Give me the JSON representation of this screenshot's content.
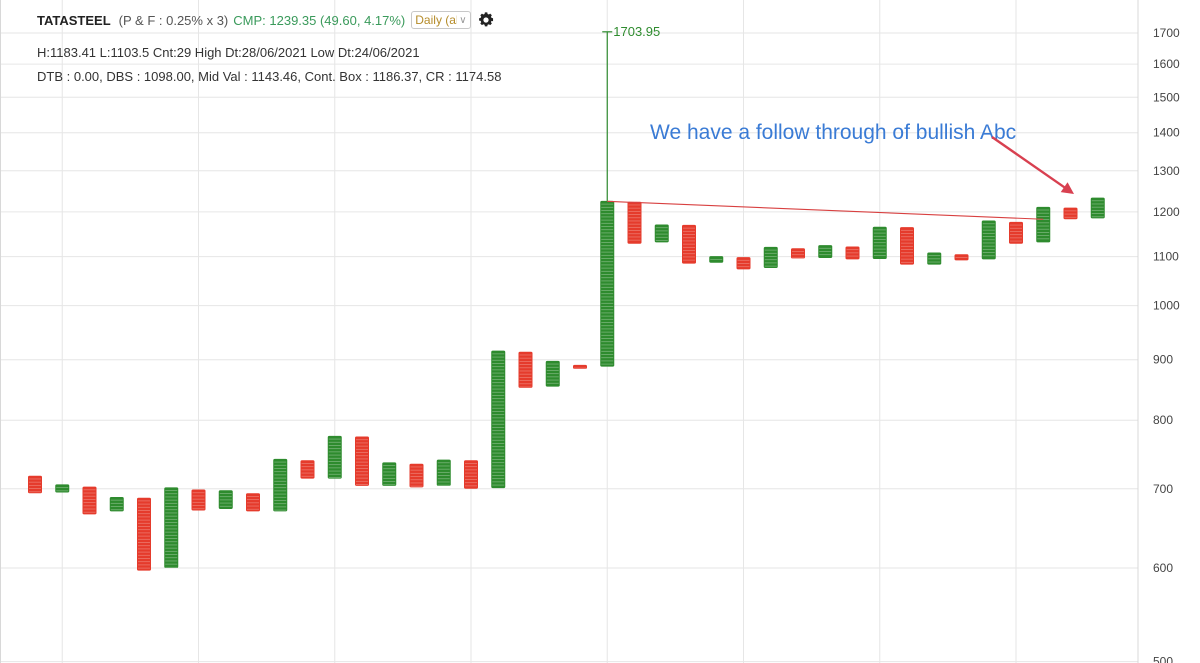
{
  "header": {
    "symbol": "TATASTEEL",
    "params": "(P & F : 0.25% x 3)",
    "cmp": "CMP: 1239.35 (49.60, 4.17%)",
    "timeframe": "Daily (al"
  },
  "info": {
    "line1": "H:1183.41 L:1103.5 Cnt:29 High Dt:28/06/2021 Low Dt:24/06/2021",
    "line2": "DTB : 0.00, DBS : 1098.00, Mid Val : 1143.46, Cont. Box : 1186.37, CR : 1174.58"
  },
  "annotation": {
    "text": "We have a follow through of bullish Abc",
    "color": "#3a7bd5"
  },
  "colors": {
    "up": "#2e8b2e",
    "down": "#e53b2c",
    "trendline": "#d84040",
    "arrow": "#d84050",
    "grid": "#e6e6e6"
  },
  "chart_data": {
    "type": "point-and-figure",
    "scale": "log",
    "ylim": [
      500,
      1760
    ],
    "y_ticks": [
      500,
      600,
      700,
      800,
      900,
      1000,
      1100,
      1200,
      1300,
      1400,
      1500,
      1600,
      1700
    ],
    "columns": [
      {
        "type": "O",
        "high": 718,
        "low": 694
      },
      {
        "type": "X",
        "high": 706,
        "low": 695
      },
      {
        "type": "O",
        "high": 703,
        "low": 666
      },
      {
        "type": "X",
        "high": 689,
        "low": 670
      },
      {
        "type": "O",
        "high": 688,
        "low": 597
      },
      {
        "type": "X",
        "high": 702,
        "low": 600
      },
      {
        "type": "O",
        "high": 699,
        "low": 671
      },
      {
        "type": "X",
        "high": 698,
        "low": 673
      },
      {
        "type": "O",
        "high": 694,
        "low": 670
      },
      {
        "type": "X",
        "high": 742,
        "low": 670
      },
      {
        "type": "O",
        "high": 740,
        "low": 714
      },
      {
        "type": "X",
        "high": 776,
        "low": 714
      },
      {
        "type": "O",
        "high": 775,
        "low": 704
      },
      {
        "type": "X",
        "high": 737,
        "low": 704
      },
      {
        "type": "O",
        "high": 735,
        "low": 702
      },
      {
        "type": "X",
        "high": 741,
        "low": 704
      },
      {
        "type": "O",
        "high": 740,
        "low": 700
      },
      {
        "type": "X",
        "high": 916,
        "low": 701
      },
      {
        "type": "O",
        "high": 914,
        "low": 852
      },
      {
        "type": "X",
        "high": 898,
        "low": 854
      },
      {
        "type": "O",
        "high": 891,
        "low": 884
      },
      {
        "type": "X",
        "high": 1226,
        "low": 888,
        "wick_high": 1703.95
      },
      {
        "type": "O",
        "high": 1224,
        "low": 1128
      },
      {
        "type": "X",
        "high": 1171,
        "low": 1131
      },
      {
        "type": "O",
        "high": 1170,
        "low": 1085
      },
      {
        "type": "X",
        "high": 1101,
        "low": 1087
      },
      {
        "type": "O",
        "high": 1099,
        "low": 1073
      },
      {
        "type": "X",
        "high": 1121,
        "low": 1076
      },
      {
        "type": "O",
        "high": 1118,
        "low": 1096
      },
      {
        "type": "X",
        "high": 1125,
        "low": 1097
      },
      {
        "type": "O",
        "high": 1122,
        "low": 1094
      },
      {
        "type": "X",
        "high": 1166,
        "low": 1095
      },
      {
        "type": "O",
        "high": 1165,
        "low": 1083
      },
      {
        "type": "X",
        "high": 1109,
        "low": 1083
      },
      {
        "type": "O",
        "high": 1105,
        "low": 1092
      },
      {
        "type": "X",
        "high": 1180,
        "low": 1094
      },
      {
        "type": "O",
        "high": 1177,
        "low": 1128
      },
      {
        "type": "X",
        "high": 1212,
        "low": 1131
      },
      {
        "type": "O",
        "high": 1210,
        "low": 1183
      },
      {
        "type": "X",
        "high": 1234,
        "low": 1185
      }
    ],
    "peak_label": "1703.95",
    "trendline": {
      "from_col": 21,
      "from_value": 1225,
      "to_col": 37,
      "to_value": 1183
    }
  }
}
